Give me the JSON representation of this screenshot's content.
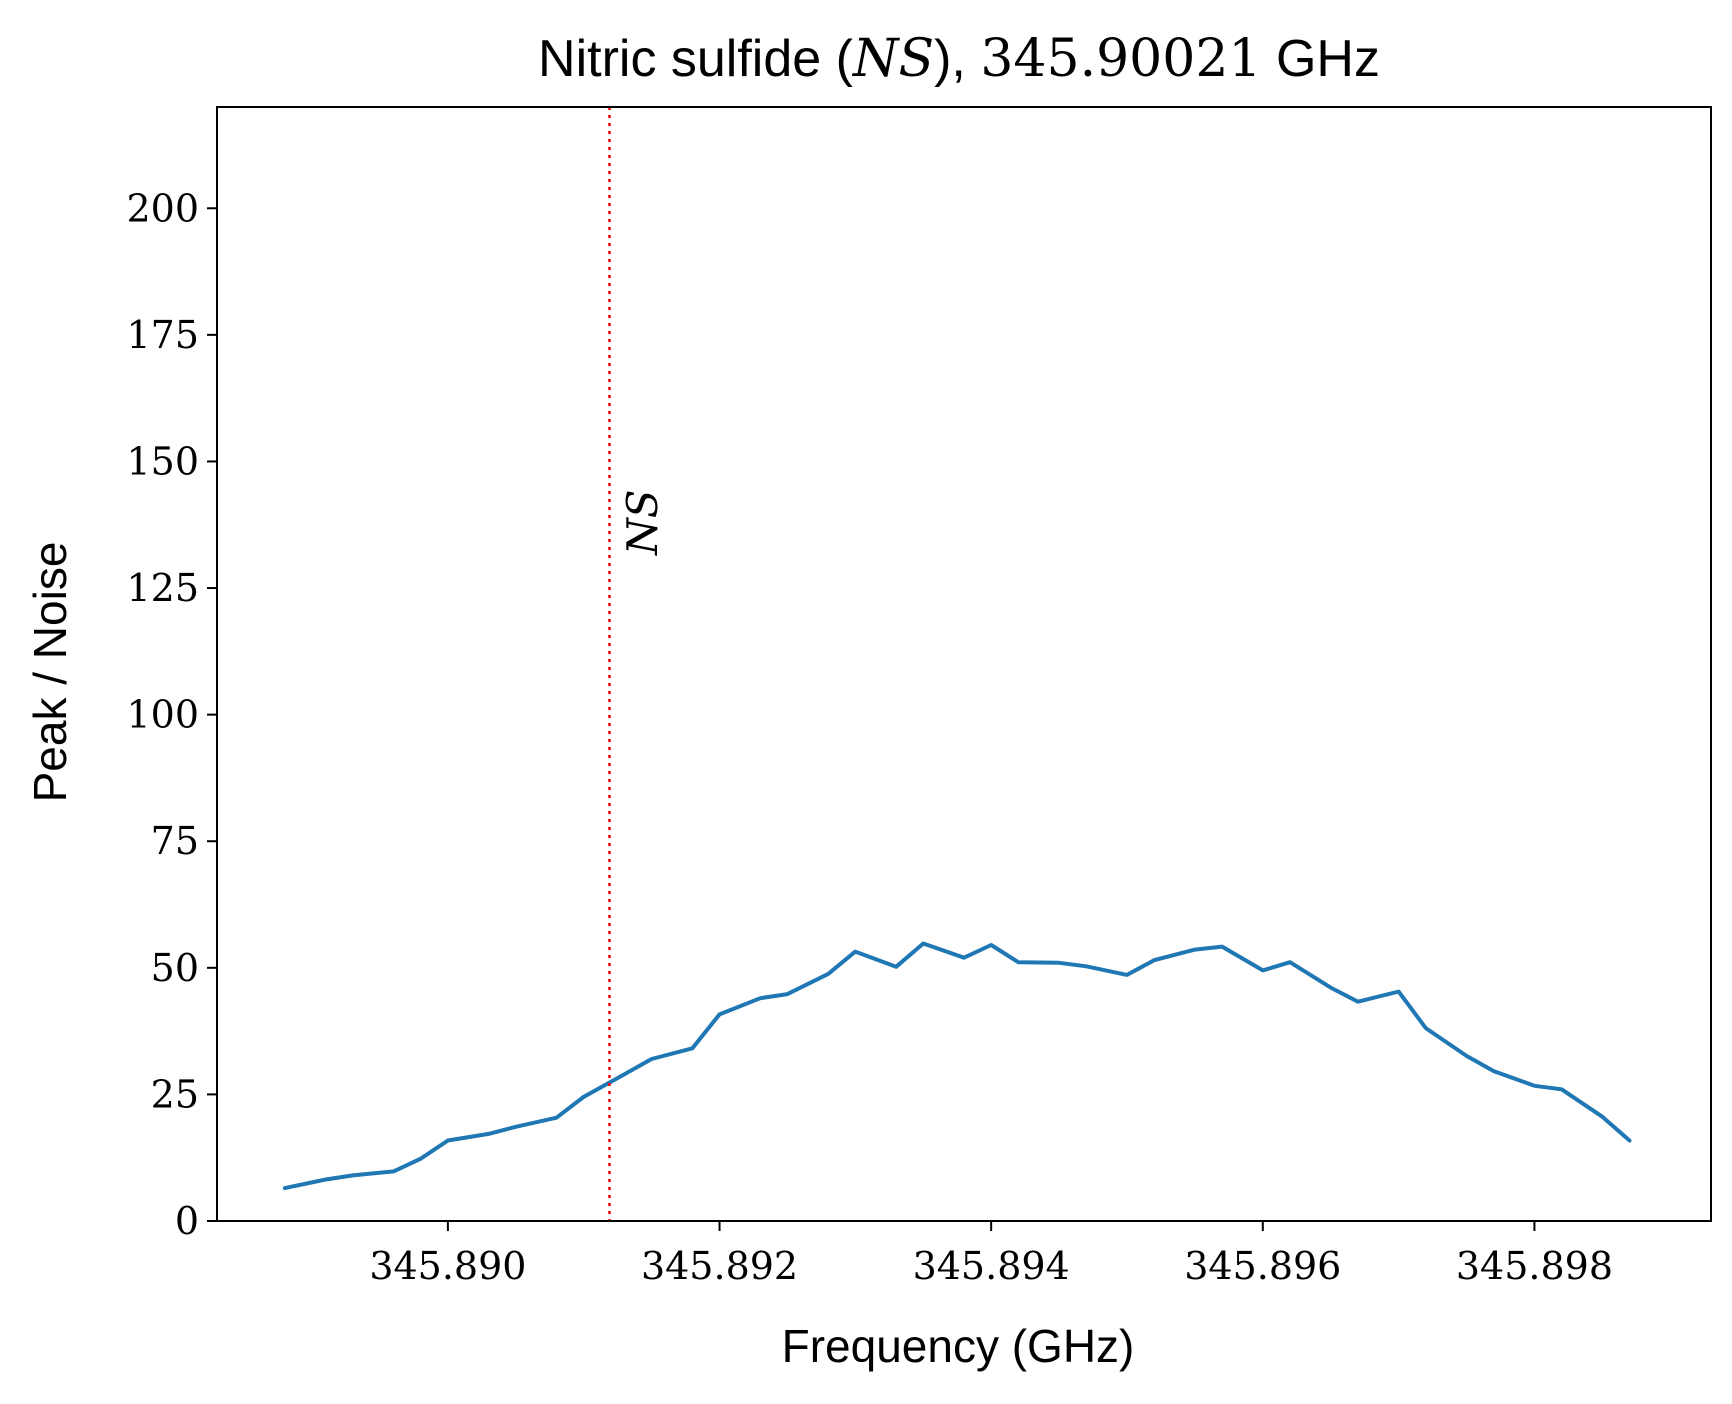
{
  "chart_data": {
    "type": "line",
    "title": {
      "prefix": "Nitric sulfide (",
      "molecule": "NS",
      "middle": "), ",
      "frequency": "345.90021",
      "suffix": " GHz"
    },
    "xlabel": "Frequency (GHz)",
    "ylabel": "Peak / Noise",
    "xlim": [
      345.8883,
      345.8993
    ],
    "ylim": [
      0,
      220
    ],
    "xticks": [
      345.89,
      345.892,
      345.894,
      345.896,
      345.898
    ],
    "xtick_labels": [
      "345.890",
      "345.892",
      "345.894",
      "345.896",
      "345.898"
    ],
    "yticks": [
      0,
      25,
      50,
      75,
      100,
      125,
      150,
      175,
      200
    ],
    "ytick_labels": [
      "0",
      "25",
      "50",
      "75",
      "100",
      "125",
      "150",
      "175",
      "200"
    ],
    "grid": false,
    "series": [
      {
        "color": "#1f77b4",
        "x": [
          345.8888,
          345.8891,
          345.8893,
          345.8896,
          345.8898,
          345.89,
          345.8903,
          345.8905,
          345.8908,
          345.891,
          345.8913,
          345.8915,
          345.8918,
          345.892,
          345.8923,
          345.8925,
          345.8928,
          345.893,
          345.8933,
          345.8935,
          345.8938,
          345.894,
          345.8942,
          345.8945,
          345.8947,
          345.895,
          345.8952,
          345.8955,
          345.8957,
          345.896,
          345.8962,
          345.8965,
          345.8967,
          345.897,
          345.8972,
          345.8975,
          345.8977,
          345.898,
          345.8982,
          345.8985,
          345.8987
        ],
        "y": [
          6.5,
          8.2,
          9.0,
          9.8,
          12.3,
          15.9,
          17.2,
          18.6,
          20.4,
          24.5,
          29.0,
          32.0,
          34.1,
          40.8,
          44.0,
          44.8,
          48.8,
          53.2,
          50.2,
          54.8,
          52.0,
          54.5,
          51.1,
          51.0,
          50.3,
          48.6,
          51.5,
          53.6,
          54.2,
          49.5,
          51.1,
          46.1,
          43.3,
          45.3,
          38.1,
          32.6,
          29.6,
          26.7,
          26.0,
          20.6,
          15.9
        ]
      }
    ],
    "annotations": [
      {
        "type": "vline",
        "x": 345.89119,
        "color": "#ff0000",
        "style": "dotted"
      },
      {
        "type": "text",
        "text": "NS",
        "x": 345.89146,
        "y": 138,
        "rotation": -90
      }
    ]
  }
}
